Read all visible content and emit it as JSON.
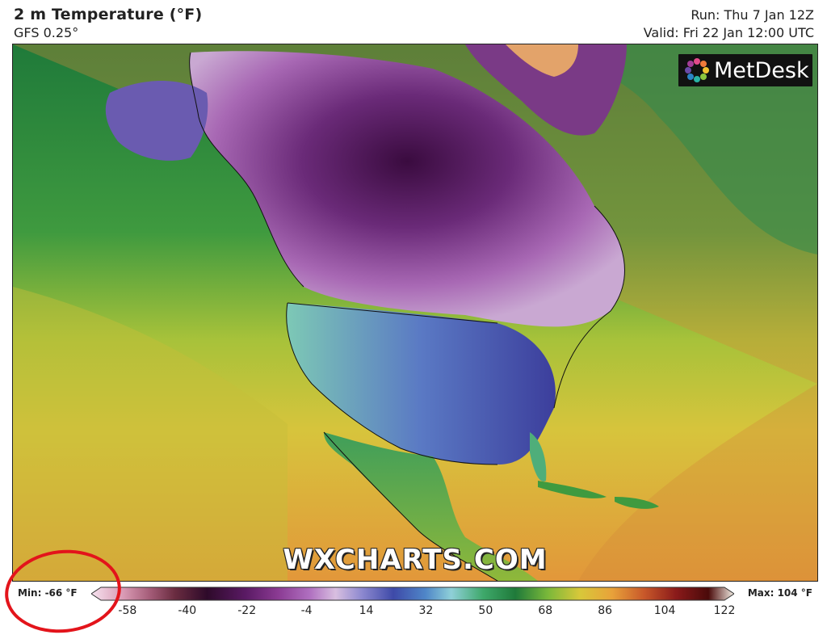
{
  "header": {
    "title": "2 m Temperature (°F)",
    "model": "GFS 0.25°",
    "run": "Run: Thu 7 Jan 12Z",
    "valid": "Valid: Fri 22 Jan 12:00 UTC"
  },
  "brand": {
    "name": "MetDesk",
    "icon": "metdesk-logo-icon"
  },
  "watermark": "WXCHARTS.COM",
  "legend": {
    "min_label": "Min: -66 °F",
    "max_label": "Max: 104 °F",
    "ticks": [
      "-58",
      "-40",
      "-22",
      "-4",
      "14",
      "32",
      "50",
      "68",
      "86",
      "104",
      "122"
    ],
    "scale_min": -66,
    "scale_max": 122
  },
  "annotation": {
    "type": "red-circle",
    "color": "#e3141b"
  }
}
